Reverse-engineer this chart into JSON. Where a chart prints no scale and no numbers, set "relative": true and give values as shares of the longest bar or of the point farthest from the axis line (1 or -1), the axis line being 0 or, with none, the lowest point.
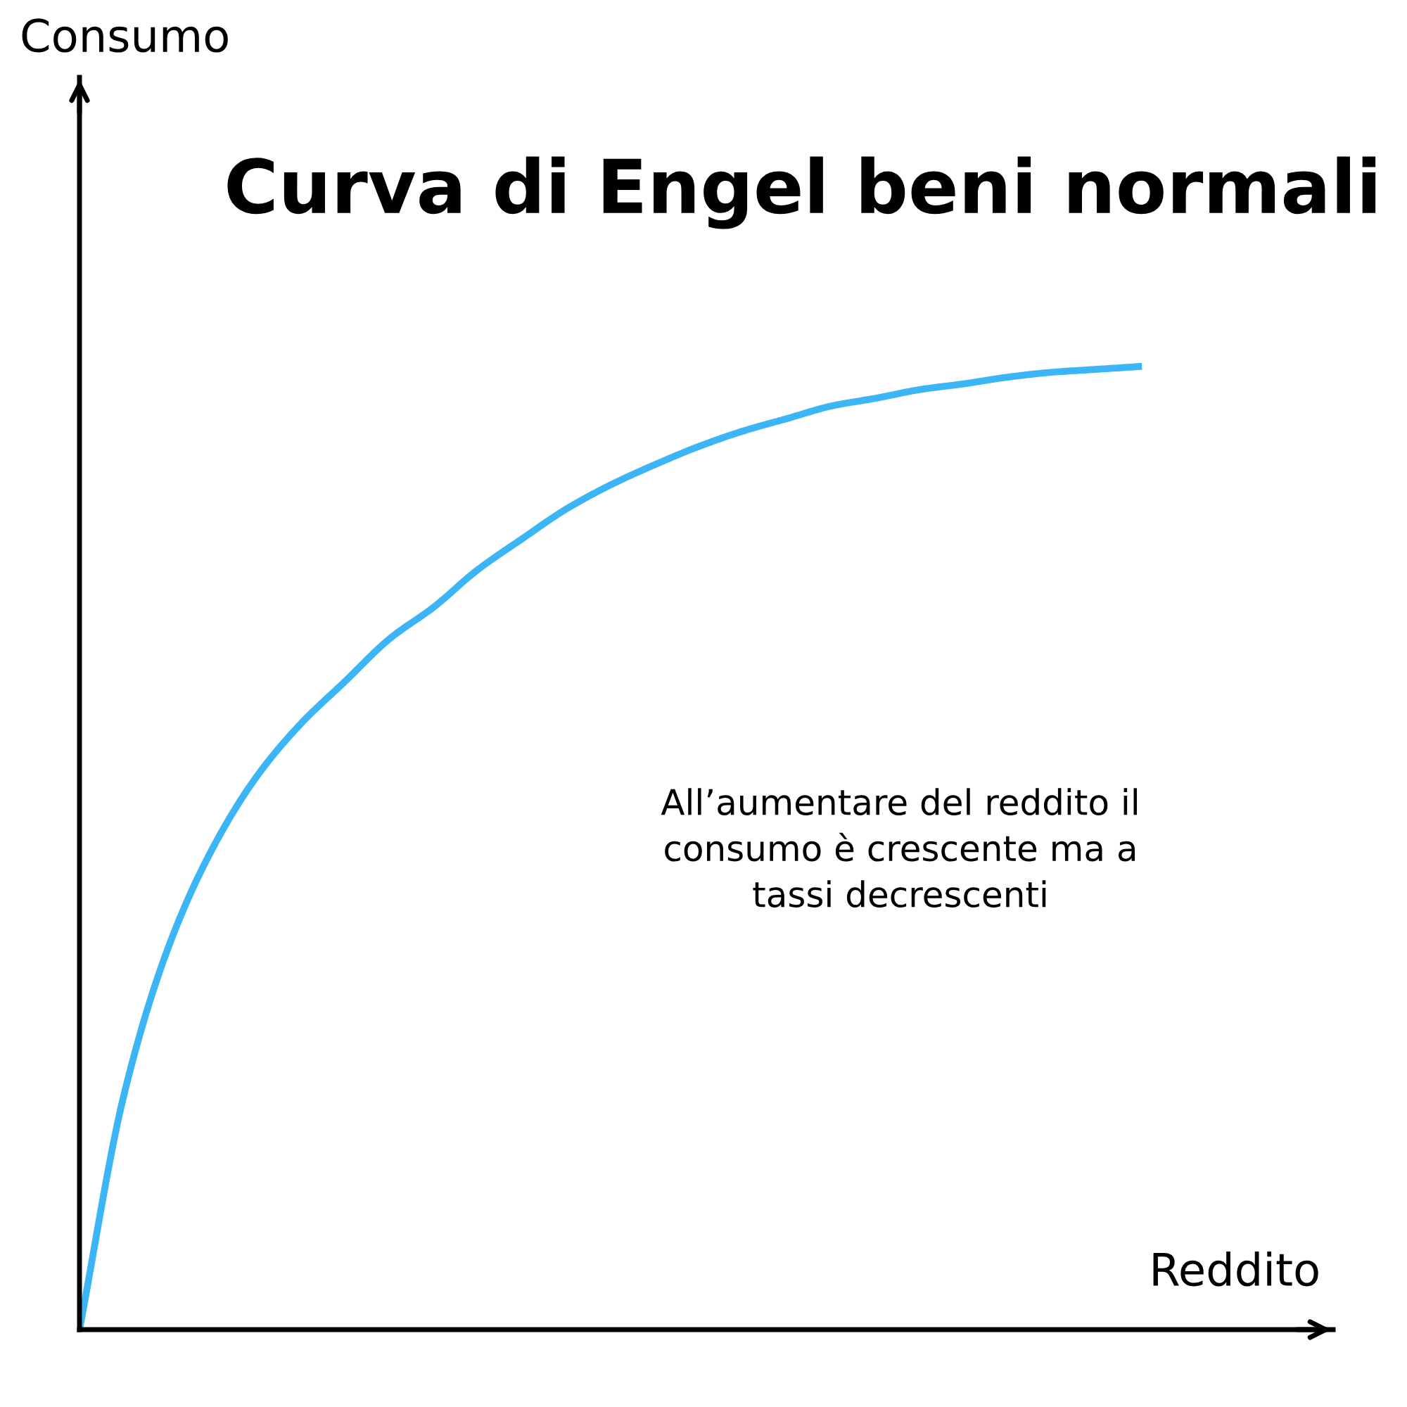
{
  "chart_data": {
    "type": "line",
    "title": "Curva di Engel beni normali",
    "xlabel": "Reddito",
    "relative": true,
    "categories": [
      null,
      null,
      null,
      null,
      null,
      null,
      null,
      null,
      null,
      null,
      null,
      null,
      null,
      null,
      null,
      null,
      null,
      null,
      null,
      null,
      null,
      null,
      null,
      null,
      null
    ],
    "series": [
      {
        "color": "#3bb5f5",
        "values": [
          0,
          0.243,
          0.396,
          0.499,
          0.574,
          0.629,
          0.673,
          0.717,
          0.75,
          0.789,
          0.821,
          0.852,
          0.877,
          0.898,
          0.917,
          0.933,
          0.946,
          0.959,
          0.967,
          0.976,
          0.982,
          0.989,
          0.994,
          0.997,
          1.0
        ]
      }
    ],
    "annotations": [
      "Consumo",
      "All’aumentare del reddito il\nconsumo è crescente ma a\ntassi decrescenti"
    ],
    "grid": false,
    "legend": false,
    "marker": "none",
    "line_style": "solid"
  }
}
